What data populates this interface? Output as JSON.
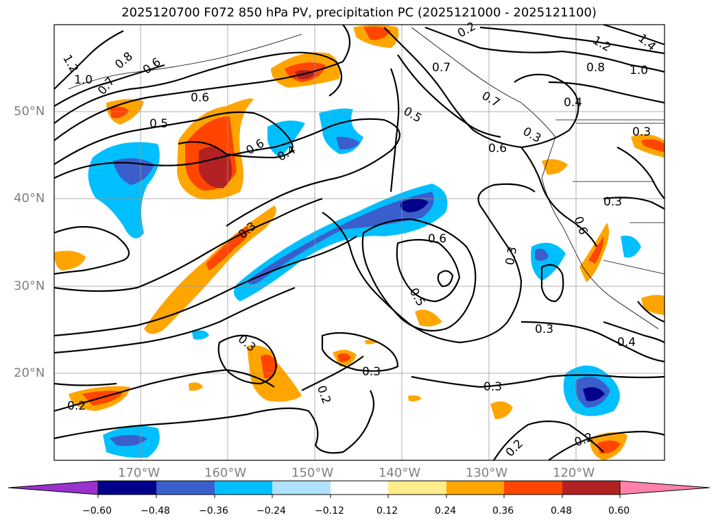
{
  "title": "2025120700 F072 850 hPa PV, precipitation PC (2025121000 - 2025121100)",
  "lat_labels": [
    "50°N",
    "40°N",
    "30°N",
    "20°N"
  ],
  "lon_labels": [
    "170°W",
    "160°W",
    "150°W",
    "140°W",
    "130°W",
    "120°W"
  ],
  "contour_labels": [
    "1.2",
    "1.0",
    "0.8",
    "0.6",
    "0.7",
    "0.6",
    "0.5",
    "0.6",
    "0.4",
    "0.3",
    "0.5",
    "0.7",
    "0.6",
    "0.5",
    "0.3",
    "0.6",
    "0.4",
    "0.3",
    "0.3",
    "0.6",
    "0.3",
    "0.2",
    "0.2",
    "0.3",
    "0.2",
    "0.3",
    "0.2",
    "0.4",
    "0.3",
    "1.0",
    "0.8",
    "1.2",
    "1.4",
    "0.7",
    "0.2",
    "0.3"
  ],
  "colorbar": {
    "ticks": [
      "−0.60",
      "−0.48",
      "−0.36",
      "−0.24",
      "−0.12",
      "0.12",
      "0.24",
      "0.36",
      "0.48",
      "0.60"
    ],
    "colors": [
      "#9932cc",
      "#00008b",
      "#3a5fcd",
      "#00bfff",
      "#b0e2ff",
      "#ffffff",
      "#ffec8b",
      "#ffa500",
      "#ff4500",
      "#b22222",
      "#ff82ab"
    ]
  }
}
